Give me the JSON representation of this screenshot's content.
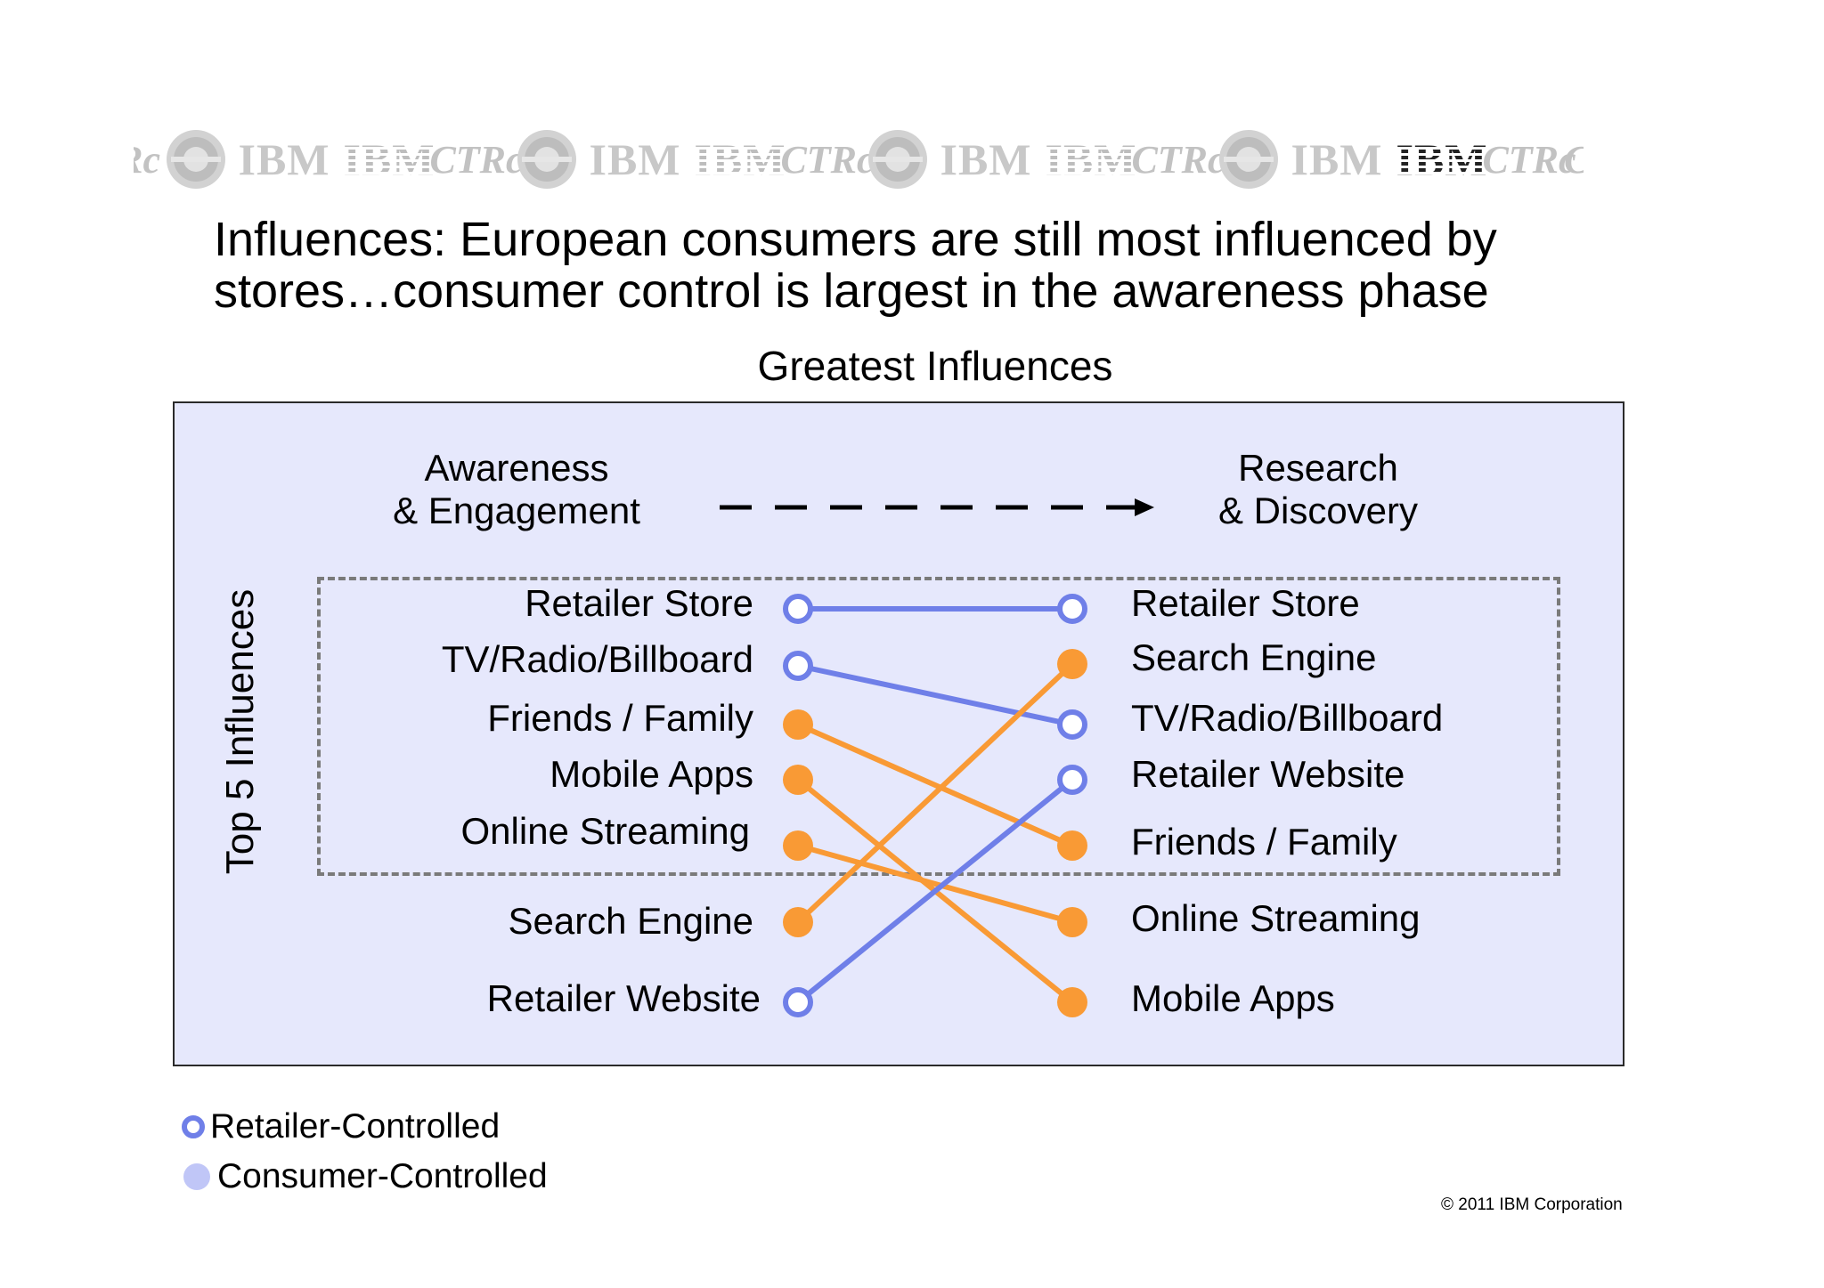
{
  "banner": {
    "items": [
      {
        "kind": "ctr-partial",
        "text": "Rc"
      },
      {
        "kind": "seal",
        "name": "seal-icon"
      },
      {
        "kind": "word",
        "text": "IBM"
      },
      {
        "kind": "word-striped",
        "text": "IBM"
      },
      {
        "kind": "ctr",
        "text": "CTRc"
      },
      {
        "kind": "seal",
        "name": "seal-icon"
      },
      {
        "kind": "word",
        "text": "IBM"
      },
      {
        "kind": "word-striped",
        "text": "IBM"
      },
      {
        "kind": "ctr",
        "text": "CTRc"
      },
      {
        "kind": "seal",
        "name": "seal-icon"
      },
      {
        "kind": "word",
        "text": "IBM"
      },
      {
        "kind": "word-striped",
        "text": "IBM"
      },
      {
        "kind": "ctr",
        "text": "CTRc"
      },
      {
        "kind": "seal",
        "name": "seal-icon"
      },
      {
        "kind": "word",
        "text": "IBM"
      },
      {
        "kind": "word-dark",
        "text": "IBM"
      },
      {
        "kind": "ctr",
        "text": "CTRc"
      },
      {
        "kind": "ctr-partial-end",
        "text": "C"
      }
    ]
  },
  "headline": {
    "line1": "Influences: European consumers are still most influenced by",
    "line2": "stores…consumer control is largest in the awareness phase"
  },
  "subtitle": "Greatest Influences",
  "stages": {
    "left": {
      "line1": "Awareness",
      "line2": "& Engagement"
    },
    "right": {
      "line1": "Research",
      "line2": "& Discovery"
    }
  },
  "axis_label": "Top 5 Influences",
  "colors": {
    "retailer": "#6f7fe8",
    "consumer": "#f99a35",
    "panel": "#e6e8fc",
    "dashed": "#7a7a7a"
  },
  "left_items": [
    {
      "label": "Retailer Store",
      "type": "retailer"
    },
    {
      "label": "TV/Radio/Billboard",
      "type": "retailer"
    },
    {
      "label": "Friends / Family",
      "type": "consumer"
    },
    {
      "label": "Mobile Apps",
      "type": "consumer"
    },
    {
      "label": "Online Streaming",
      "type": "consumer"
    },
    {
      "label": "Search Engine",
      "type": "consumer"
    },
    {
      "label": "Retailer Website",
      "type": "retailer"
    }
  ],
  "right_items": [
    {
      "label": "Retailer Store",
      "type": "retailer"
    },
    {
      "label": "Search Engine",
      "type": "consumer"
    },
    {
      "label": "TV/Radio/Billboard",
      "type": "retailer"
    },
    {
      "label": "Retailer Website",
      "type": "retailer"
    },
    {
      "label": "Friends / Family",
      "type": "consumer"
    },
    {
      "label": "Online Streaming",
      "type": "consumer"
    },
    {
      "label": "Mobile Apps",
      "type": "consumer"
    }
  ],
  "links": [
    {
      "from": 0,
      "to": 0,
      "type": "retailer"
    },
    {
      "from": 1,
      "to": 2,
      "type": "retailer"
    },
    {
      "from": 2,
      "to": 4,
      "type": "consumer"
    },
    {
      "from": 3,
      "to": 6,
      "type": "consumer"
    },
    {
      "from": 4,
      "to": 5,
      "type": "consumer"
    },
    {
      "from": 5,
      "to": 1,
      "type": "consumer"
    },
    {
      "from": 6,
      "to": 3,
      "type": "retailer"
    }
  ],
  "legend": {
    "retailer": "Retailer-Controlled",
    "consumer": "Consumer-Controlled"
  },
  "copyright": "© 2011 IBM Corporation"
}
